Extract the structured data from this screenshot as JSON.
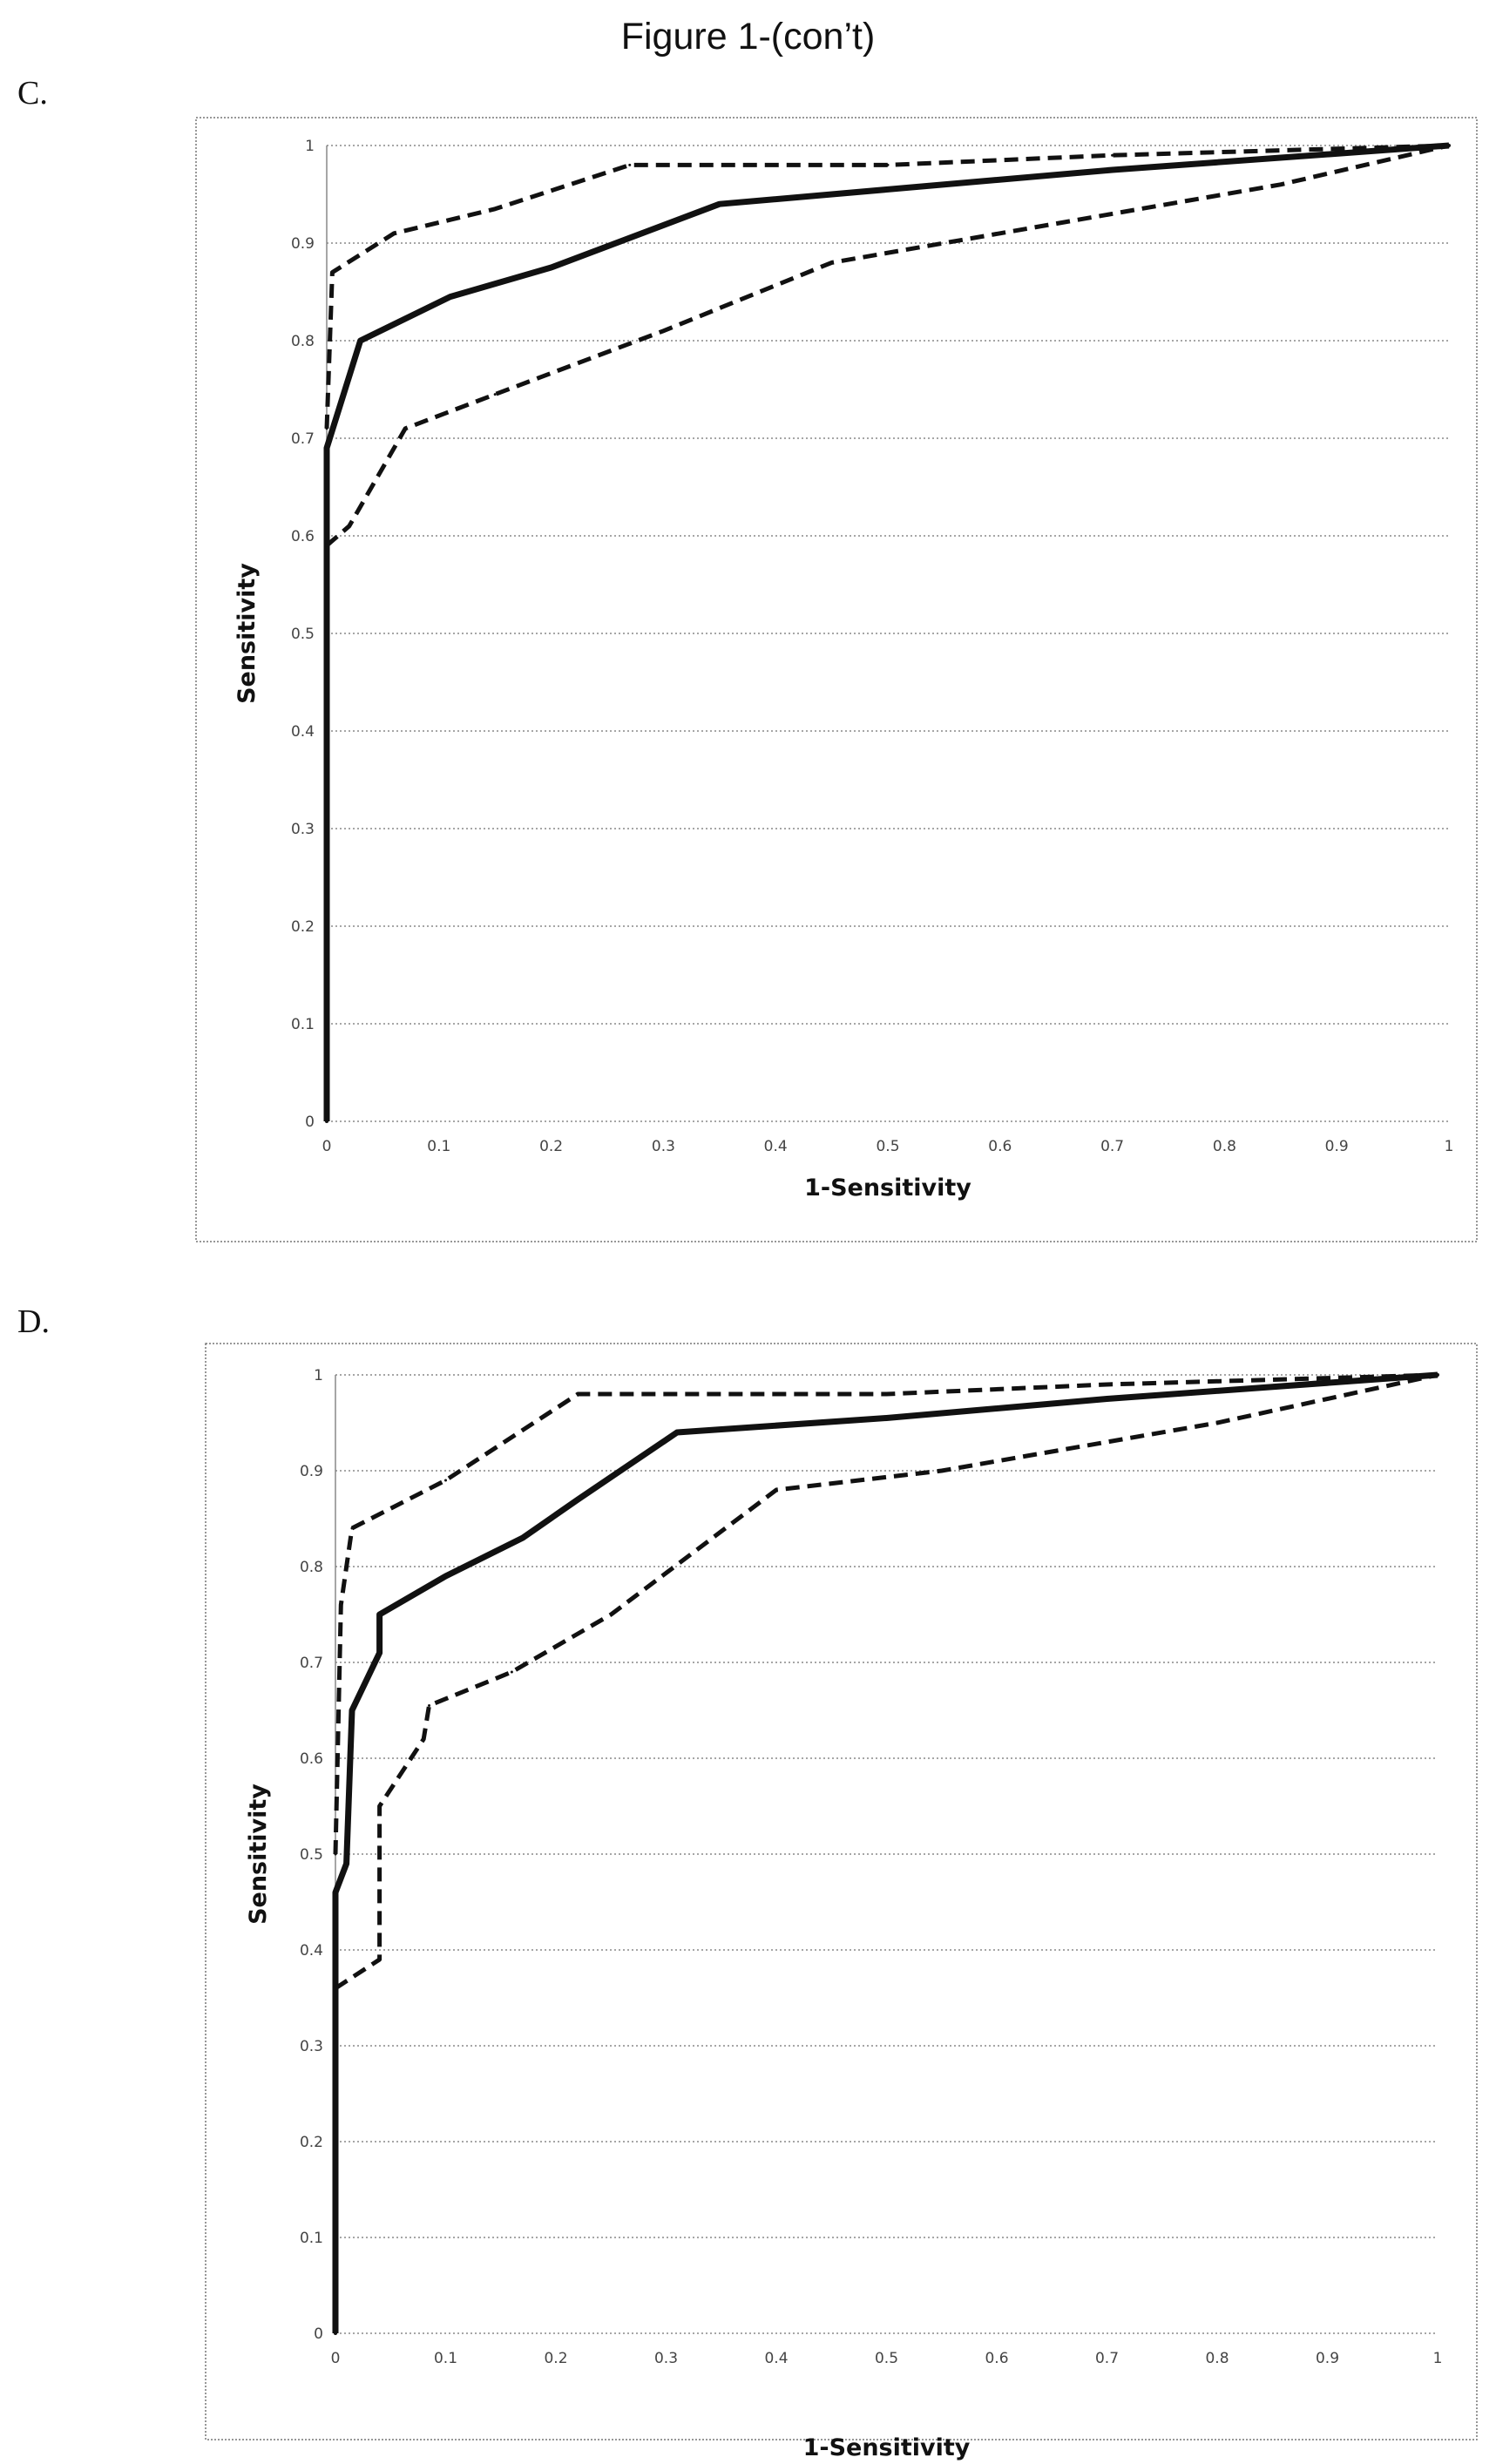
{
  "figure_title": "Figure 1-(con’t)",
  "panels": [
    {
      "label": "C."
    },
    {
      "label": "D."
    }
  ],
  "chart_data": [
    {
      "type": "line",
      "xlabel": "1-Sensitivity",
      "ylabel": "Sensitivity",
      "xlim": [
        0,
        1
      ],
      "ylim": [
        0,
        1
      ],
      "xticks": [
        "0",
        "0.1",
        "0.2",
        "0.3",
        "0.4",
        "0.5",
        "0.6",
        "0.7",
        "0.8",
        "0.9",
        "1"
      ],
      "yticks": [
        "0",
        "0.1",
        "0.2",
        "0.3",
        "0.4",
        "0.5",
        "0.6",
        "0.7",
        "0.8",
        "0.9",
        "1"
      ],
      "grid": "horizontal dotted",
      "series": [
        {
          "style": "solid",
          "points": [
            [
              0,
              0
            ],
            [
              0,
              0.69
            ],
            [
              0.03,
              0.8
            ],
            [
              0.11,
              0.845
            ],
            [
              0.2,
              0.875
            ],
            [
              0.35,
              0.94
            ],
            [
              0.5,
              0.955
            ],
            [
              0.7,
              0.975
            ],
            [
              1,
              1
            ]
          ]
        },
        {
          "style": "dashed",
          "points": [
            [
              0,
              0.71
            ],
            [
              0.005,
              0.87
            ],
            [
              0.06,
              0.91
            ],
            [
              0.15,
              0.935
            ],
            [
              0.27,
              0.98
            ],
            [
              0.5,
              0.98
            ],
            [
              0.7,
              0.99
            ],
            [
              1,
              1
            ]
          ]
        },
        {
          "style": "dashed",
          "points": [
            [
              0,
              0.59
            ],
            [
              0.02,
              0.61
            ],
            [
              0.07,
              0.71
            ],
            [
              0.15,
              0.745
            ],
            [
              0.3,
              0.81
            ],
            [
              0.45,
              0.88
            ],
            [
              0.6,
              0.91
            ],
            [
              0.85,
              0.96
            ],
            [
              1,
              1
            ]
          ]
        }
      ]
    },
    {
      "type": "line",
      "xlabel": "1-Sensitivity",
      "ylabel": "Sensitivity",
      "xlim": [
        0,
        1
      ],
      "ylim": [
        0,
        1
      ],
      "xticks": [
        "0",
        "0.1",
        "0.2",
        "0.3",
        "0.4",
        "0.5",
        "0.6",
        "0.7",
        "0.8",
        "0.9",
        "1"
      ],
      "yticks": [
        "0",
        "0.1",
        "0.2",
        "0.3",
        "0.4",
        "0.5",
        "0.6",
        "0.7",
        "0.8",
        "0.9",
        "1"
      ],
      "grid": "horizontal dotted",
      "series": [
        {
          "style": "solid",
          "points": [
            [
              0,
              0
            ],
            [
              0,
              0.46
            ],
            [
              0.01,
              0.49
            ],
            [
              0.015,
              0.65
            ],
            [
              0.04,
              0.71
            ],
            [
              0.04,
              0.75
            ],
            [
              0.1,
              0.79
            ],
            [
              0.17,
              0.83
            ],
            [
              0.22,
              0.87
            ],
            [
              0.31,
              0.94
            ],
            [
              0.5,
              0.955
            ],
            [
              0.7,
              0.975
            ],
            [
              1,
              1
            ]
          ]
        },
        {
          "style": "dashed",
          "points": [
            [
              0,
              0.5
            ],
            [
              0.005,
              0.76
            ],
            [
              0.015,
              0.84
            ],
            [
              0.1,
              0.89
            ],
            [
              0.22,
              0.98
            ],
            [
              0.5,
              0.98
            ],
            [
              0.7,
              0.99
            ],
            [
              1,
              1
            ]
          ]
        },
        {
          "style": "dashed",
          "points": [
            [
              0,
              0.36
            ],
            [
              0.04,
              0.39
            ],
            [
              0.04,
              0.55
            ],
            [
              0.08,
              0.62
            ],
            [
              0.085,
              0.655
            ],
            [
              0.16,
              0.69
            ],
            [
              0.25,
              0.75
            ],
            [
              0.4,
              0.88
            ],
            [
              0.55,
              0.9
            ],
            [
              0.8,
              0.95
            ],
            [
              1,
              1
            ]
          ]
        }
      ]
    }
  ]
}
